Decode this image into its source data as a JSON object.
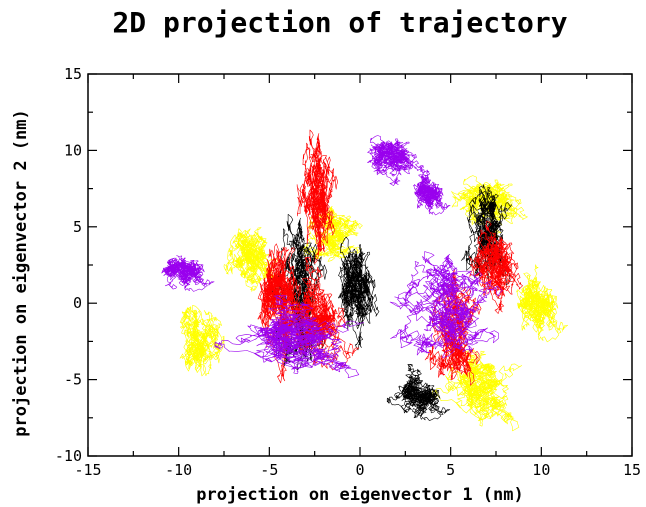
{
  "chart_data": {
    "type": "scatter",
    "title": "2D projection of trajectory",
    "xlabel": "projection on eigenvector 1 (nm)",
    "ylabel": "projection on eigenvector 2 (nm)",
    "xlim": [
      -15,
      15
    ],
    "ylim": [
      -10,
      15
    ],
    "xticks": [
      -15,
      -10,
      -5,
      0,
      5,
      10,
      15
    ],
    "yticks": [
      -10,
      -5,
      0,
      5,
      10,
      15
    ],
    "grid": false,
    "legend": "none",
    "series": [
      {
        "color": "#ff0000",
        "clusters": [
          {
            "x": [
              -3.5,
              -1.0
            ],
            "y": [
              1.5,
              11.5
            ]
          },
          {
            "x": [
              -6.0,
              -2.5
            ],
            "y": [
              -5.5,
              6.5
            ]
          },
          {
            "x": [
              -4.5,
              0.0
            ],
            "y": [
              -5.0,
              3.0
            ]
          },
          {
            "x": [
              3.5,
              7.0
            ],
            "y": [
              -5.5,
              2.5
            ]
          },
          {
            "x": [
              6.0,
              9.5
            ],
            "y": [
              -1.0,
              5.5
            ]
          }
        ]
      },
      {
        "color": "#000000",
        "clusters": [
          {
            "x": [
              -5.0,
              -1.5
            ],
            "y": [
              -5.0,
              6.0
            ]
          },
          {
            "x": [
              -1.5,
              1.5
            ],
            "y": [
              -3.5,
              5.5
            ]
          },
          {
            "x": [
              1.5,
              5.0
            ],
            "y": [
              -8.0,
              -4.0
            ]
          },
          {
            "x": [
              5.5,
              9.0
            ],
            "y": [
              1.0,
              9.0
            ]
          }
        ]
      },
      {
        "color": "#9900ee",
        "clusters": [
          {
            "x": [
              -11.5,
              -8.0
            ],
            "y": [
              0.5,
              4.0
            ]
          },
          {
            "x": [
              -8.0,
              2.0
            ],
            "y": [
              -5.0,
              0.5
            ]
          },
          {
            "x": [
              1.5,
              8.5
            ],
            "y": [
              -4.0,
              3.5
            ]
          },
          {
            "x": [
              0.0,
              4.0
            ],
            "y": [
              7.5,
              11.5
            ]
          },
          {
            "x": [
              2.5,
              5.0
            ],
            "y": [
              5.5,
              9.0
            ]
          }
        ]
      },
      {
        "color": "#ffff00",
        "clusters": [
          {
            "x": [
              -10.5,
              -7.5
            ],
            "y": [
              -5.5,
              0.5
            ]
          },
          {
            "x": [
              -7.5,
              -4.0
            ],
            "y": [
              0.0,
              6.0
            ]
          },
          {
            "x": [
              -3.5,
              0.5
            ],
            "y": [
              2.5,
              6.5
            ]
          },
          {
            "x": [
              5.0,
              10.0
            ],
            "y": [
              4.0,
              9.0
            ]
          },
          {
            "x": [
              8.0,
              11.5
            ],
            "y": [
              -3.0,
              3.0
            ]
          },
          {
            "x": [
              4.0,
              10.0
            ],
            "y": [
              -8.5,
              -2.0
            ]
          }
        ]
      }
    ]
  }
}
